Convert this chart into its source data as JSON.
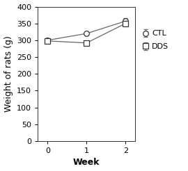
{
  "weeks": [
    0,
    1,
    2
  ],
  "CTL_mean": [
    300,
    320,
    357
  ],
  "CTL_err": [
    5,
    5,
    8
  ],
  "DDS_mean": [
    298,
    292,
    350
  ],
  "DDS_err": [
    5,
    6,
    5
  ],
  "xlabel": "Week",
  "ylabel": "Weight of rats (g)",
  "ylim": [
    0,
    400
  ],
  "yticks": [
    0,
    50,
    100,
    150,
    200,
    250,
    300,
    350,
    400
  ],
  "xticks": [
    0,
    1,
    2
  ],
  "line_color": "#666666",
  "marker_facecolor": "white",
  "marker_edgecolor": "#333333",
  "legend_labels": [
    "CTL",
    "DDS"
  ],
  "background_color": "#ffffff",
  "axis_fontsize": 9,
  "tick_fontsize": 8,
  "legend_fontsize": 8
}
